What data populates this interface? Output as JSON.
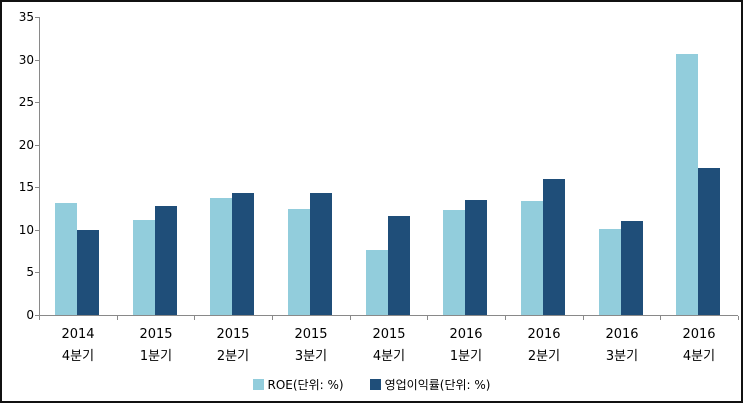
{
  "chart_data": {
    "type": "bar",
    "categories": [
      {
        "year": "2014",
        "quarter": "4분기"
      },
      {
        "year": "2015",
        "quarter": "1분기"
      },
      {
        "year": "2015",
        "quarter": "2분기"
      },
      {
        "year": "2015",
        "quarter": "3분기"
      },
      {
        "year": "2015",
        "quarter": "4분기"
      },
      {
        "year": "2016",
        "quarter": "1분기"
      },
      {
        "year": "2016",
        "quarter": "2분기"
      },
      {
        "year": "2016",
        "quarter": "3분기"
      },
      {
        "year": "2016",
        "quarter": "4분기"
      }
    ],
    "series": [
      {
        "name": "ROE(단위: %)",
        "color": "#92CDDC",
        "values": [
          13.2,
          11.2,
          13.7,
          12.4,
          7.6,
          12.3,
          13.4,
          10.1,
          30.7
        ]
      },
      {
        "name": "영업이익률(단위: %)",
        "color": "#1F4E79",
        "values": [
          10.0,
          12.8,
          14.3,
          14.3,
          11.6,
          13.5,
          16.0,
          11.0,
          17.3
        ]
      }
    ],
    "title": "",
    "xlabel": "",
    "ylabel": "",
    "ylim": [
      0,
      35
    ],
    "yticks": [
      0,
      5,
      10,
      15,
      20,
      25,
      30,
      35
    ],
    "grid": false,
    "legend_position": "bottom"
  },
  "colors": {
    "axis": "#898989",
    "text": "#000000",
    "frame_border": "#111111",
    "background": "#FFFFFF"
  }
}
